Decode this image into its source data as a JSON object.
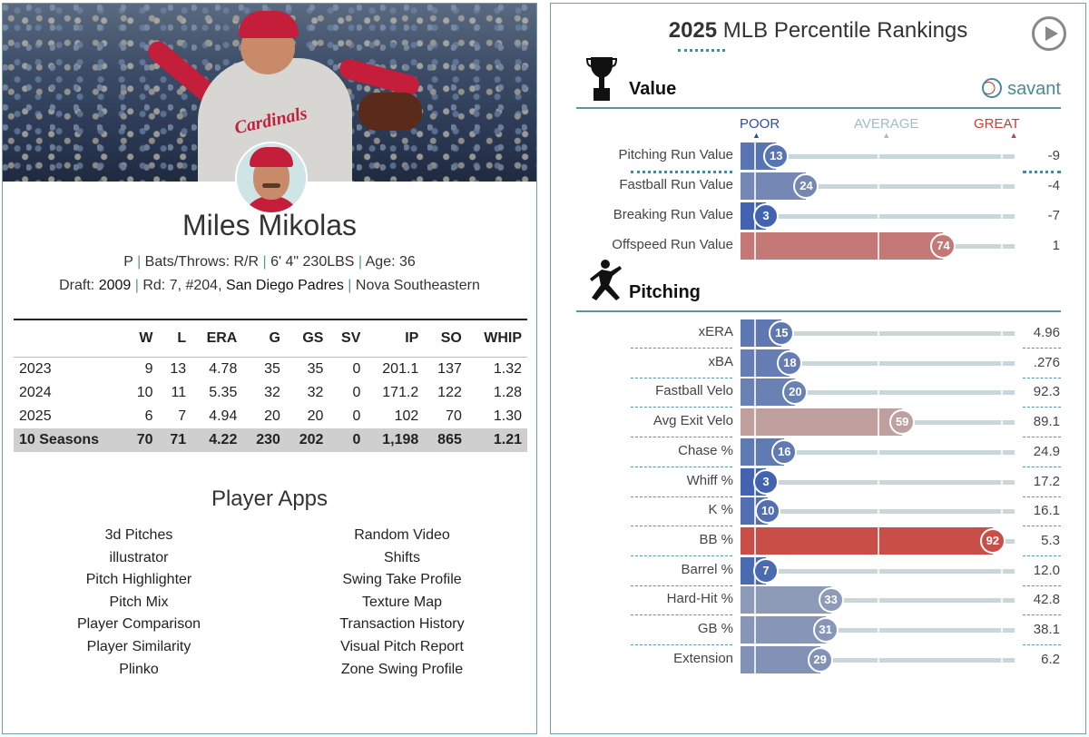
{
  "player": {
    "name": "Miles Mikolas",
    "position": "P",
    "bats_throws_label": "Bats/Throws: R/R",
    "height_weight": "6' 4\" 230LBS",
    "age_label": "Age: 36",
    "draft_label": "Draft:",
    "draft_year": "2009",
    "draft_round": "Rd: 7, #204,",
    "draft_team": "San Diego Padres",
    "school": "Nova Southeastern",
    "hero_jersey_text": "Cardinals"
  },
  "stats": {
    "headers": [
      "",
      "W",
      "L",
      "ERA",
      "G",
      "GS",
      "SV",
      "IP",
      "SO",
      "WHIP"
    ],
    "rows": [
      [
        "2023",
        "9",
        "13",
        "4.78",
        "35",
        "35",
        "0",
        "201.1",
        "137",
        "1.32"
      ],
      [
        "2024",
        "10",
        "11",
        "5.35",
        "32",
        "32",
        "0",
        "171.2",
        "122",
        "1.28"
      ],
      [
        "2025",
        "6",
        "7",
        "4.94",
        "20",
        "20",
        "0",
        "102",
        "70",
        "1.30"
      ]
    ],
    "career": [
      "10 Seasons",
      "70",
      "71",
      "4.22",
      "230",
      "202",
      "0",
      "1,198",
      "865",
      "1.21"
    ]
  },
  "apps": {
    "title": "Player Apps",
    "left": [
      "3d Pitches",
      "illustrator",
      "Pitch Highlighter",
      "Pitch Mix",
      "Player Comparison",
      "Player Similarity",
      "Plinko"
    ],
    "right": [
      "Random Video",
      "Shifts",
      "Swing Take Profile",
      "Texture Map",
      "Transaction History",
      "Visual Pitch Report",
      "Zone Swing Profile"
    ]
  },
  "rankings": {
    "year": "2025",
    "title": "MLB Percentile Rankings",
    "brand": "savant",
    "scale": {
      "poor": "POOR",
      "average": "AVERAGE",
      "great": "GREAT"
    },
    "colors": {
      "poor": "#3b5fb0",
      "average": "#bcbcbc",
      "great": "#cc3b34",
      "track": "#c9d7da",
      "accent": "#5b95a3"
    },
    "sections": [
      {
        "label": "Value",
        "icon": "trophy-icon",
        "rows": [
          {
            "metric": "Pitching Run Value",
            "percentile": 13,
            "value": "-9"
          },
          {
            "metric": "Fastball Run Value",
            "percentile": 24,
            "value": "-4"
          },
          {
            "metric": "Breaking Run Value",
            "percentile": 3,
            "value": "-7"
          },
          {
            "metric": "Offspeed Run Value",
            "percentile": 74,
            "value": "1"
          }
        ]
      },
      {
        "label": "Pitching",
        "icon": "pitcher-icon",
        "rows": [
          {
            "metric": "xERA",
            "percentile": 15,
            "value": "4.96"
          },
          {
            "metric": "xBA",
            "percentile": 18,
            "value": ".276"
          },
          {
            "metric": "Fastball Velo",
            "percentile": 20,
            "value": "92.3"
          },
          {
            "metric": "Avg Exit Velo",
            "percentile": 59,
            "value": "89.1"
          },
          {
            "metric": "Chase %",
            "percentile": 16,
            "value": "24.9"
          },
          {
            "metric": "Whiff %",
            "percentile": 3,
            "value": "17.2"
          },
          {
            "metric": "K %",
            "percentile": 10,
            "value": "16.1"
          },
          {
            "metric": "BB %",
            "percentile": 92,
            "value": "5.3"
          },
          {
            "metric": "Barrel %",
            "percentile": 7,
            "value": "12.0"
          },
          {
            "metric": "Hard-Hit %",
            "percentile": 33,
            "value": "42.8"
          },
          {
            "metric": "GB %",
            "percentile": 31,
            "value": "38.1"
          },
          {
            "metric": "Extension",
            "percentile": 29,
            "value": "6.2"
          }
        ]
      }
    ]
  }
}
